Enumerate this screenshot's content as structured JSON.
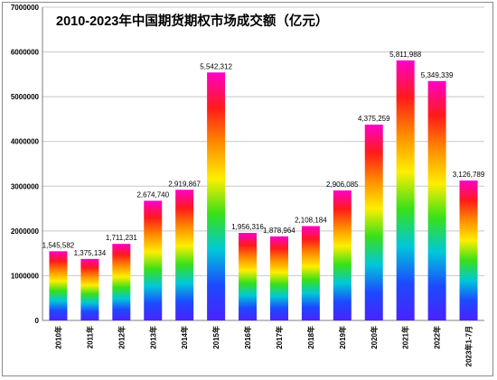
{
  "chart_data": {
    "type": "bar",
    "title": "2010-2023年中国期货期权市场成交额（亿元）",
    "categories": [
      "2010年",
      "2011年",
      "2012年",
      "2013年",
      "2014年",
      "2015年",
      "2016年",
      "2017年",
      "2018年",
      "2019年",
      "2020年",
      "2021年",
      "2022年",
      "2023年1-7月"
    ],
    "values": [
      1545582,
      1375134,
      1711231,
      2674740,
      2919867,
      5542312,
      1956316,
      1878964,
      2108184,
      2906085,
      4375259,
      5811988,
      5349339,
      3126789
    ],
    "value_labels": [
      "1,545,582",
      "1,375,134",
      "1,711,231",
      "2,674,740",
      "2,919,867",
      "5,542,312",
      "1,956,316",
      "1,878,964",
      "2,108,184",
      "2,906,085",
      "4,375,259",
      "5,811,988",
      "5,349,339",
      "3,126,789"
    ],
    "yticks": [
      "0",
      "1000000",
      "2000000",
      "3000000",
      "4000000",
      "5000000",
      "6000000",
      "7000000"
    ],
    "ylim": [
      0,
      7000000
    ],
    "grid": true,
    "legend": "none",
    "bar_fill": "rainbow-gradient",
    "gradient_colors": [
      "#ff00c8",
      "#ff1a1a",
      "#ff8c00",
      "#ffee00",
      "#38e018",
      "#00c8d8",
      "#1c4aff",
      "#4a22ff"
    ]
  }
}
